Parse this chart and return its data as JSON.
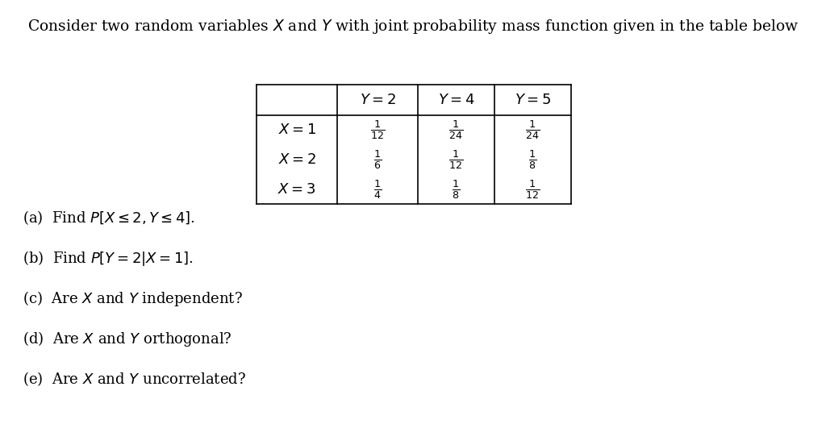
{
  "title": "Consider two random variables $X$ and $Y$ with joint probability mass function given in the table below",
  "title_fontsize": 13.5,
  "background_color": "#ffffff",
  "text_color": "#000000",
  "questions": [
    "(a)  Find $P[X \\leq 2, Y \\leq 4]$.",
    "(b)  Find $P[Y = 2|X = 1]$.",
    "(c)  Are $X$ and $Y$ independent?",
    "(d)  Are $X$ and $Y$ orthogonal?",
    "(e)  Are $X$ and $Y$ uncorrelated?"
  ],
  "col_headers": [
    "",
    "$Y = 2$",
    "$Y = 4$",
    "$Y = 5$"
  ],
  "row_labels": [
    "$X = 1$",
    "$X = 2$",
    "$X = 3$"
  ],
  "col1_fracs": [
    "$\\frac{1}{12}$",
    "$\\frac{1}{6}$",
    "$\\frac{1}{4}$"
  ],
  "col2_fracs": [
    "$\\frac{1}{24}$",
    "$\\frac{1}{12}$",
    "$\\frac{1}{8}$"
  ],
  "col3_fracs": [
    "$\\frac{1}{24}$",
    "$\\frac{1}{8}$",
    "$\\frac{1}{12}$"
  ]
}
